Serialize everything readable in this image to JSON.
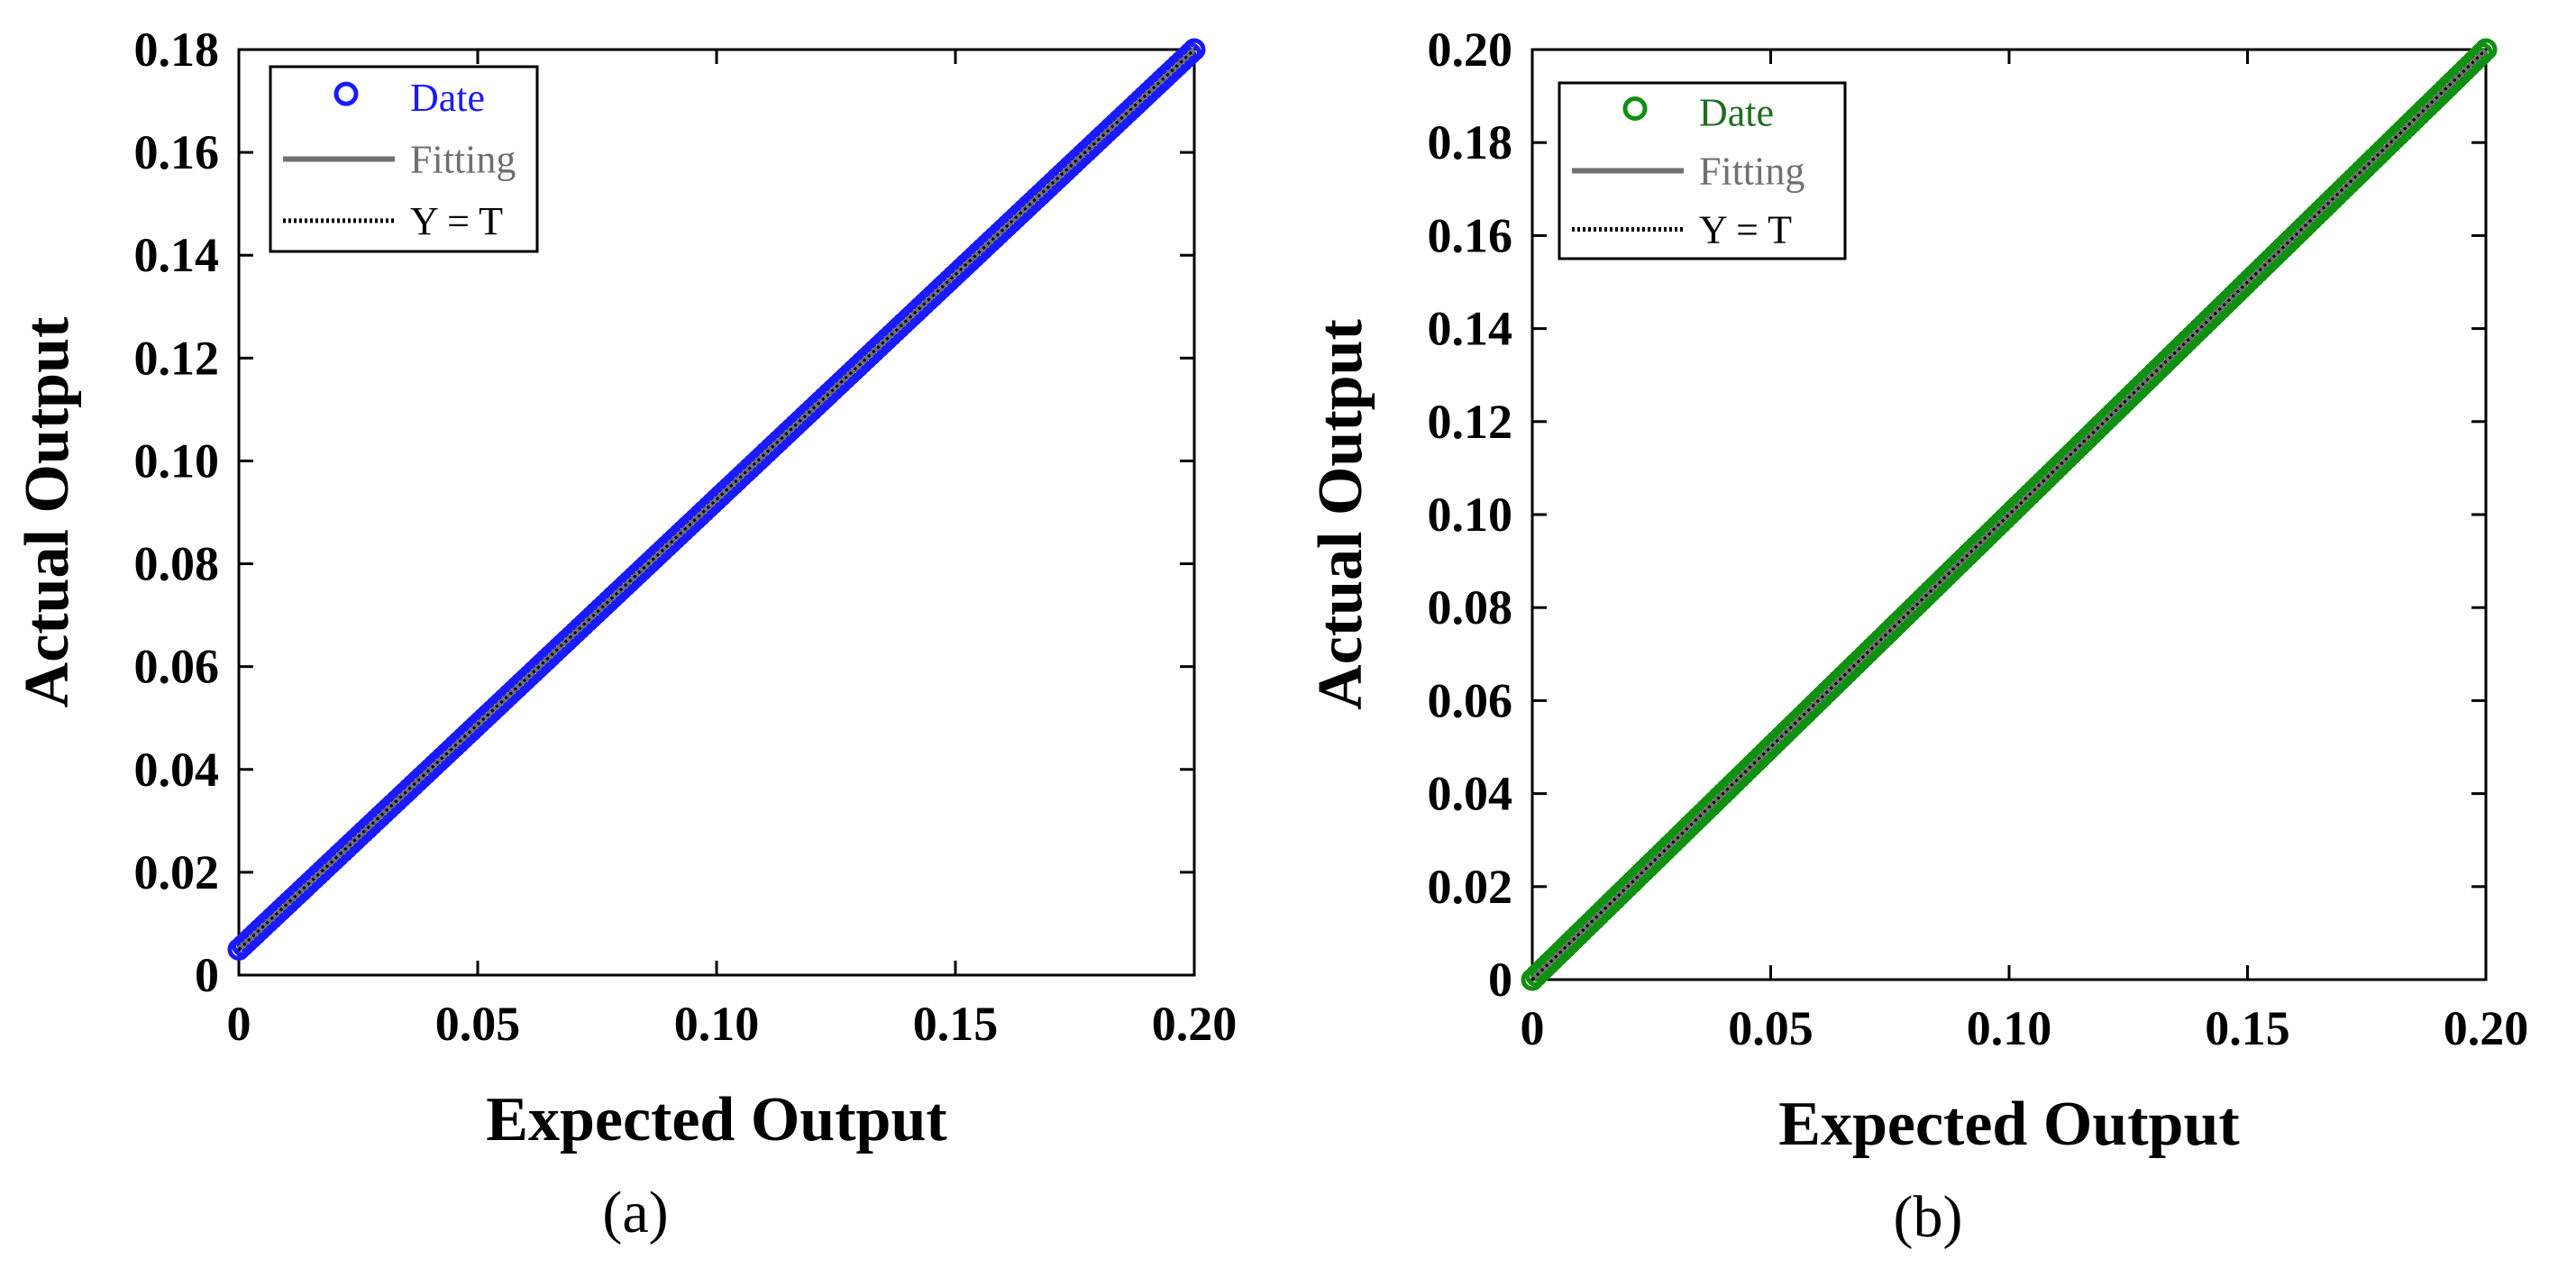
{
  "chart_data": [
    {
      "type": "scatter",
      "panel_label": "(a)",
      "xlabel": "Expected Output",
      "ylabel": "Actual Output",
      "xlim": [
        0,
        0.2
      ],
      "ylim": [
        0,
        0.18
      ],
      "xticks": [
        0,
        0.05,
        0.1,
        0.15,
        0.2
      ],
      "xtick_labels": [
        "0",
        "0.05",
        "0.10",
        "0.15",
        "0.20"
      ],
      "yticks": [
        0,
        0.02,
        0.04,
        0.06,
        0.08,
        0.1,
        0.12,
        0.14,
        0.16,
        0.18
      ],
      "ytick_labels": [
        "0",
        "0.02",
        "0.04",
        "0.06",
        "0.08",
        "0.10",
        "0.12",
        "0.14",
        "0.16",
        "0.18"
      ],
      "grid": false,
      "legend_position": "top-left",
      "legend": [
        {
          "label": "Date",
          "marker": "circle"
        },
        {
          "label": "Fitting",
          "marker": "solid-line"
        },
        {
          "label": "Y = T",
          "marker": "dotted-line"
        }
      ],
      "colors": {
        "points": "#1a1aff",
        "date_label": "#1a1aff",
        "fitting": "#707070",
        "fitting_label": "#707070",
        "identity": "#000000"
      },
      "series": [
        {
          "name": "Date",
          "kind": "points",
          "x_range": [
            0,
            0.2
          ],
          "y_range": [
            0.005,
            0.18
          ],
          "dense_points_along_line": true
        },
        {
          "name": "Fitting",
          "kind": "line",
          "x": [
            0,
            0.2
          ],
          "y": [
            0.005,
            0.18
          ]
        },
        {
          "name": "Y = T",
          "kind": "line",
          "x": [
            0,
            0.2
          ],
          "y": [
            0.005,
            0.18
          ]
        }
      ]
    },
    {
      "type": "scatter",
      "panel_label": "(b)",
      "xlabel": "Expected Output",
      "ylabel": "Actual Output",
      "xlim": [
        0,
        0.2
      ],
      "ylim": [
        0,
        0.2
      ],
      "xticks": [
        0,
        0.05,
        0.1,
        0.15,
        0.2
      ],
      "xtick_labels": [
        "0",
        "0.05",
        "0.10",
        "0.15",
        "0.20"
      ],
      "yticks": [
        0,
        0.02,
        0.04,
        0.06,
        0.08,
        0.1,
        0.12,
        0.14,
        0.16,
        0.18,
        0.2
      ],
      "ytick_labels": [
        "0",
        "0.02",
        "0.04",
        "0.06",
        "0.08",
        "0.10",
        "0.12",
        "0.14",
        "0.16",
        "0.18",
        "0.20"
      ],
      "grid": false,
      "legend_position": "top-left",
      "legend": [
        {
          "label": "Date",
          "marker": "circle"
        },
        {
          "label": "Fitting",
          "marker": "solid-line"
        },
        {
          "label": "Y = T",
          "marker": "dotted-line"
        }
      ],
      "colors": {
        "points": "#109010",
        "date_label": "#1f6e1f",
        "fitting": "#707070",
        "fitting_label": "#707070",
        "identity": "#000000"
      },
      "series": [
        {
          "name": "Date",
          "kind": "points",
          "x_range": [
            0,
            0.2
          ],
          "y_range": [
            0,
            0.2
          ],
          "dense_points_along_line": true
        },
        {
          "name": "Fitting",
          "kind": "line",
          "x": [
            0,
            0.2
          ],
          "y": [
            0,
            0.2
          ]
        },
        {
          "name": "Y = T",
          "kind": "line",
          "x": [
            0,
            0.2
          ],
          "y": [
            0,
            0.2
          ]
        }
      ]
    }
  ]
}
